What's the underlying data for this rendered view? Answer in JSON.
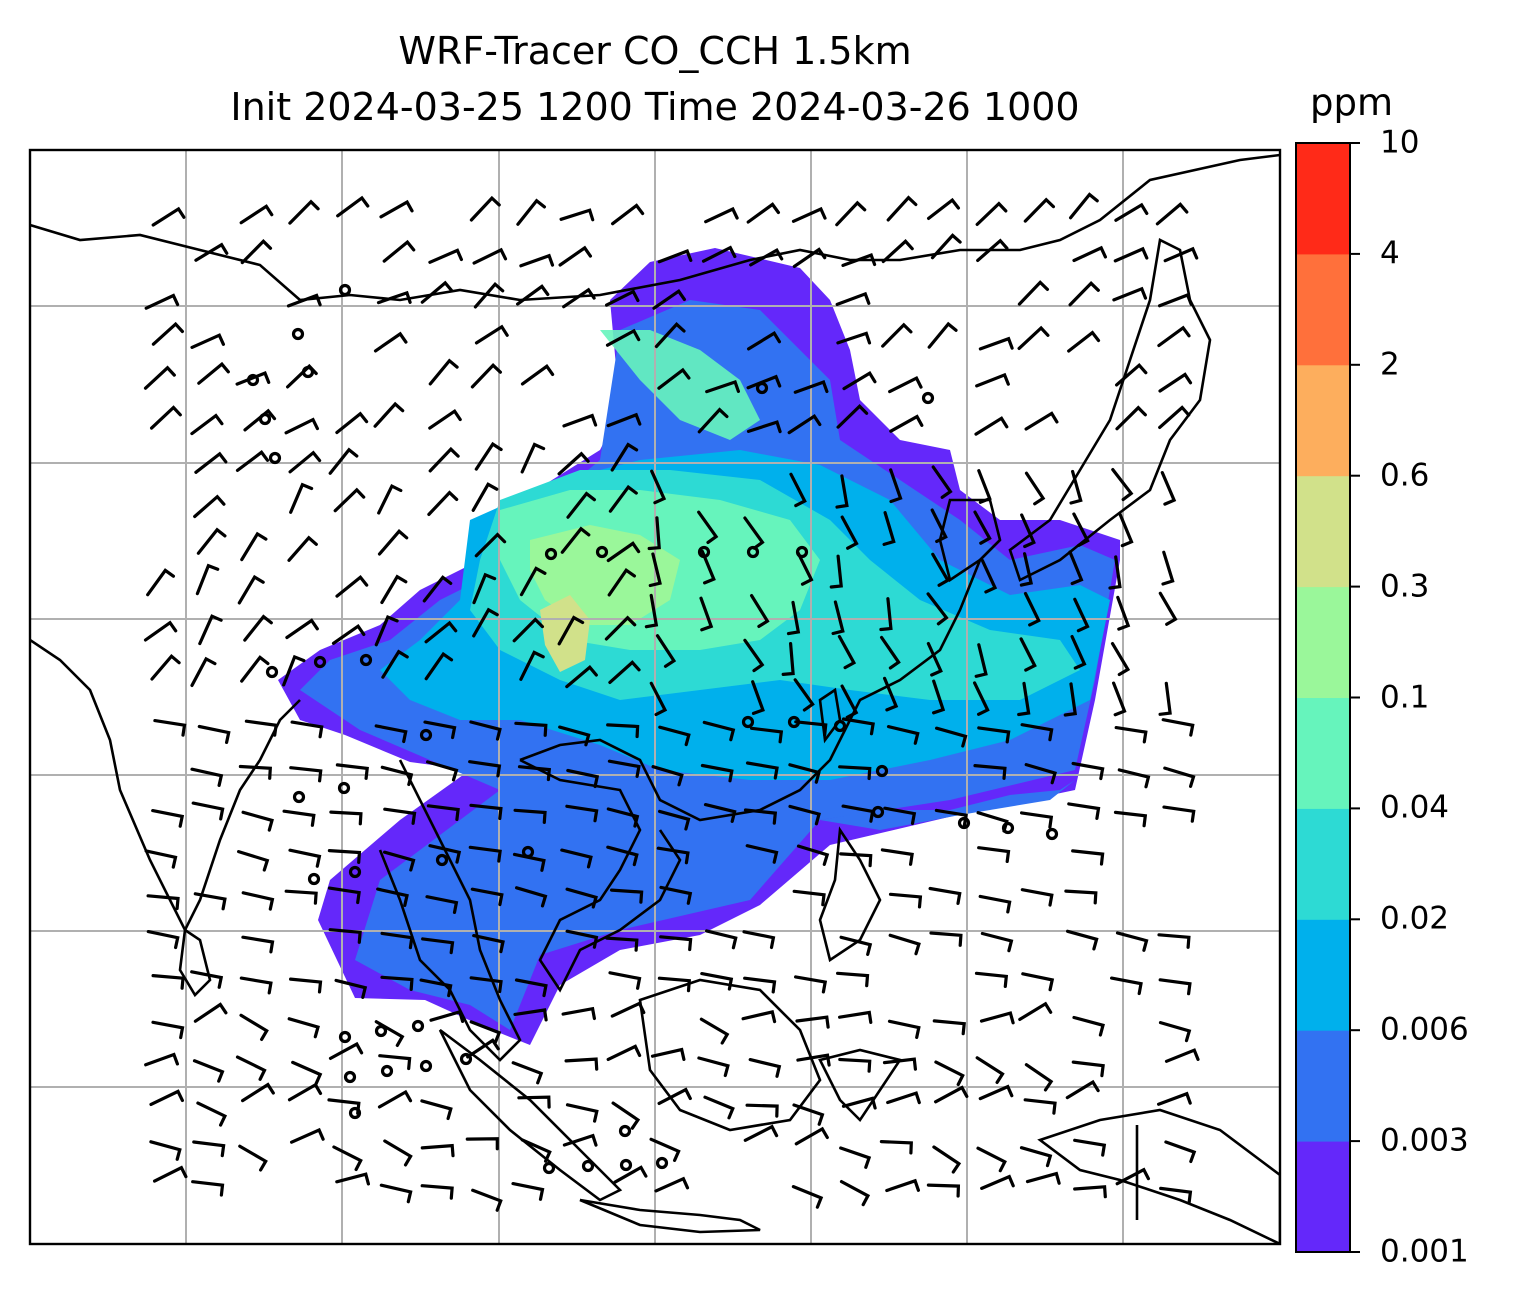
{
  "title_line1": "WRF-Tracer CO_CCH 1.5km",
  "title_line2": "Init 2024-03-25 1200 Time 2024-03-26 1000",
  "colorbar": {
    "unit": "ppm",
    "ticks": [
      "0.001",
      "0.003",
      "0.006",
      "0.02",
      "0.04",
      "0.1",
      "0.3",
      "0.6",
      "2",
      "4",
      "10"
    ],
    "colors": [
      "#6428fa",
      "#3272f2",
      "#00b0ec",
      "#2ddad4",
      "#66f4bc",
      "#9af79a",
      "#d1e18a",
      "#fdae5d",
      "#ff703b",
      "#ff2a18"
    ]
  },
  "map": {
    "gridlines": true,
    "features": [
      "coastlines",
      "wind-barbs",
      "tracer-concentration-field"
    ]
  }
}
